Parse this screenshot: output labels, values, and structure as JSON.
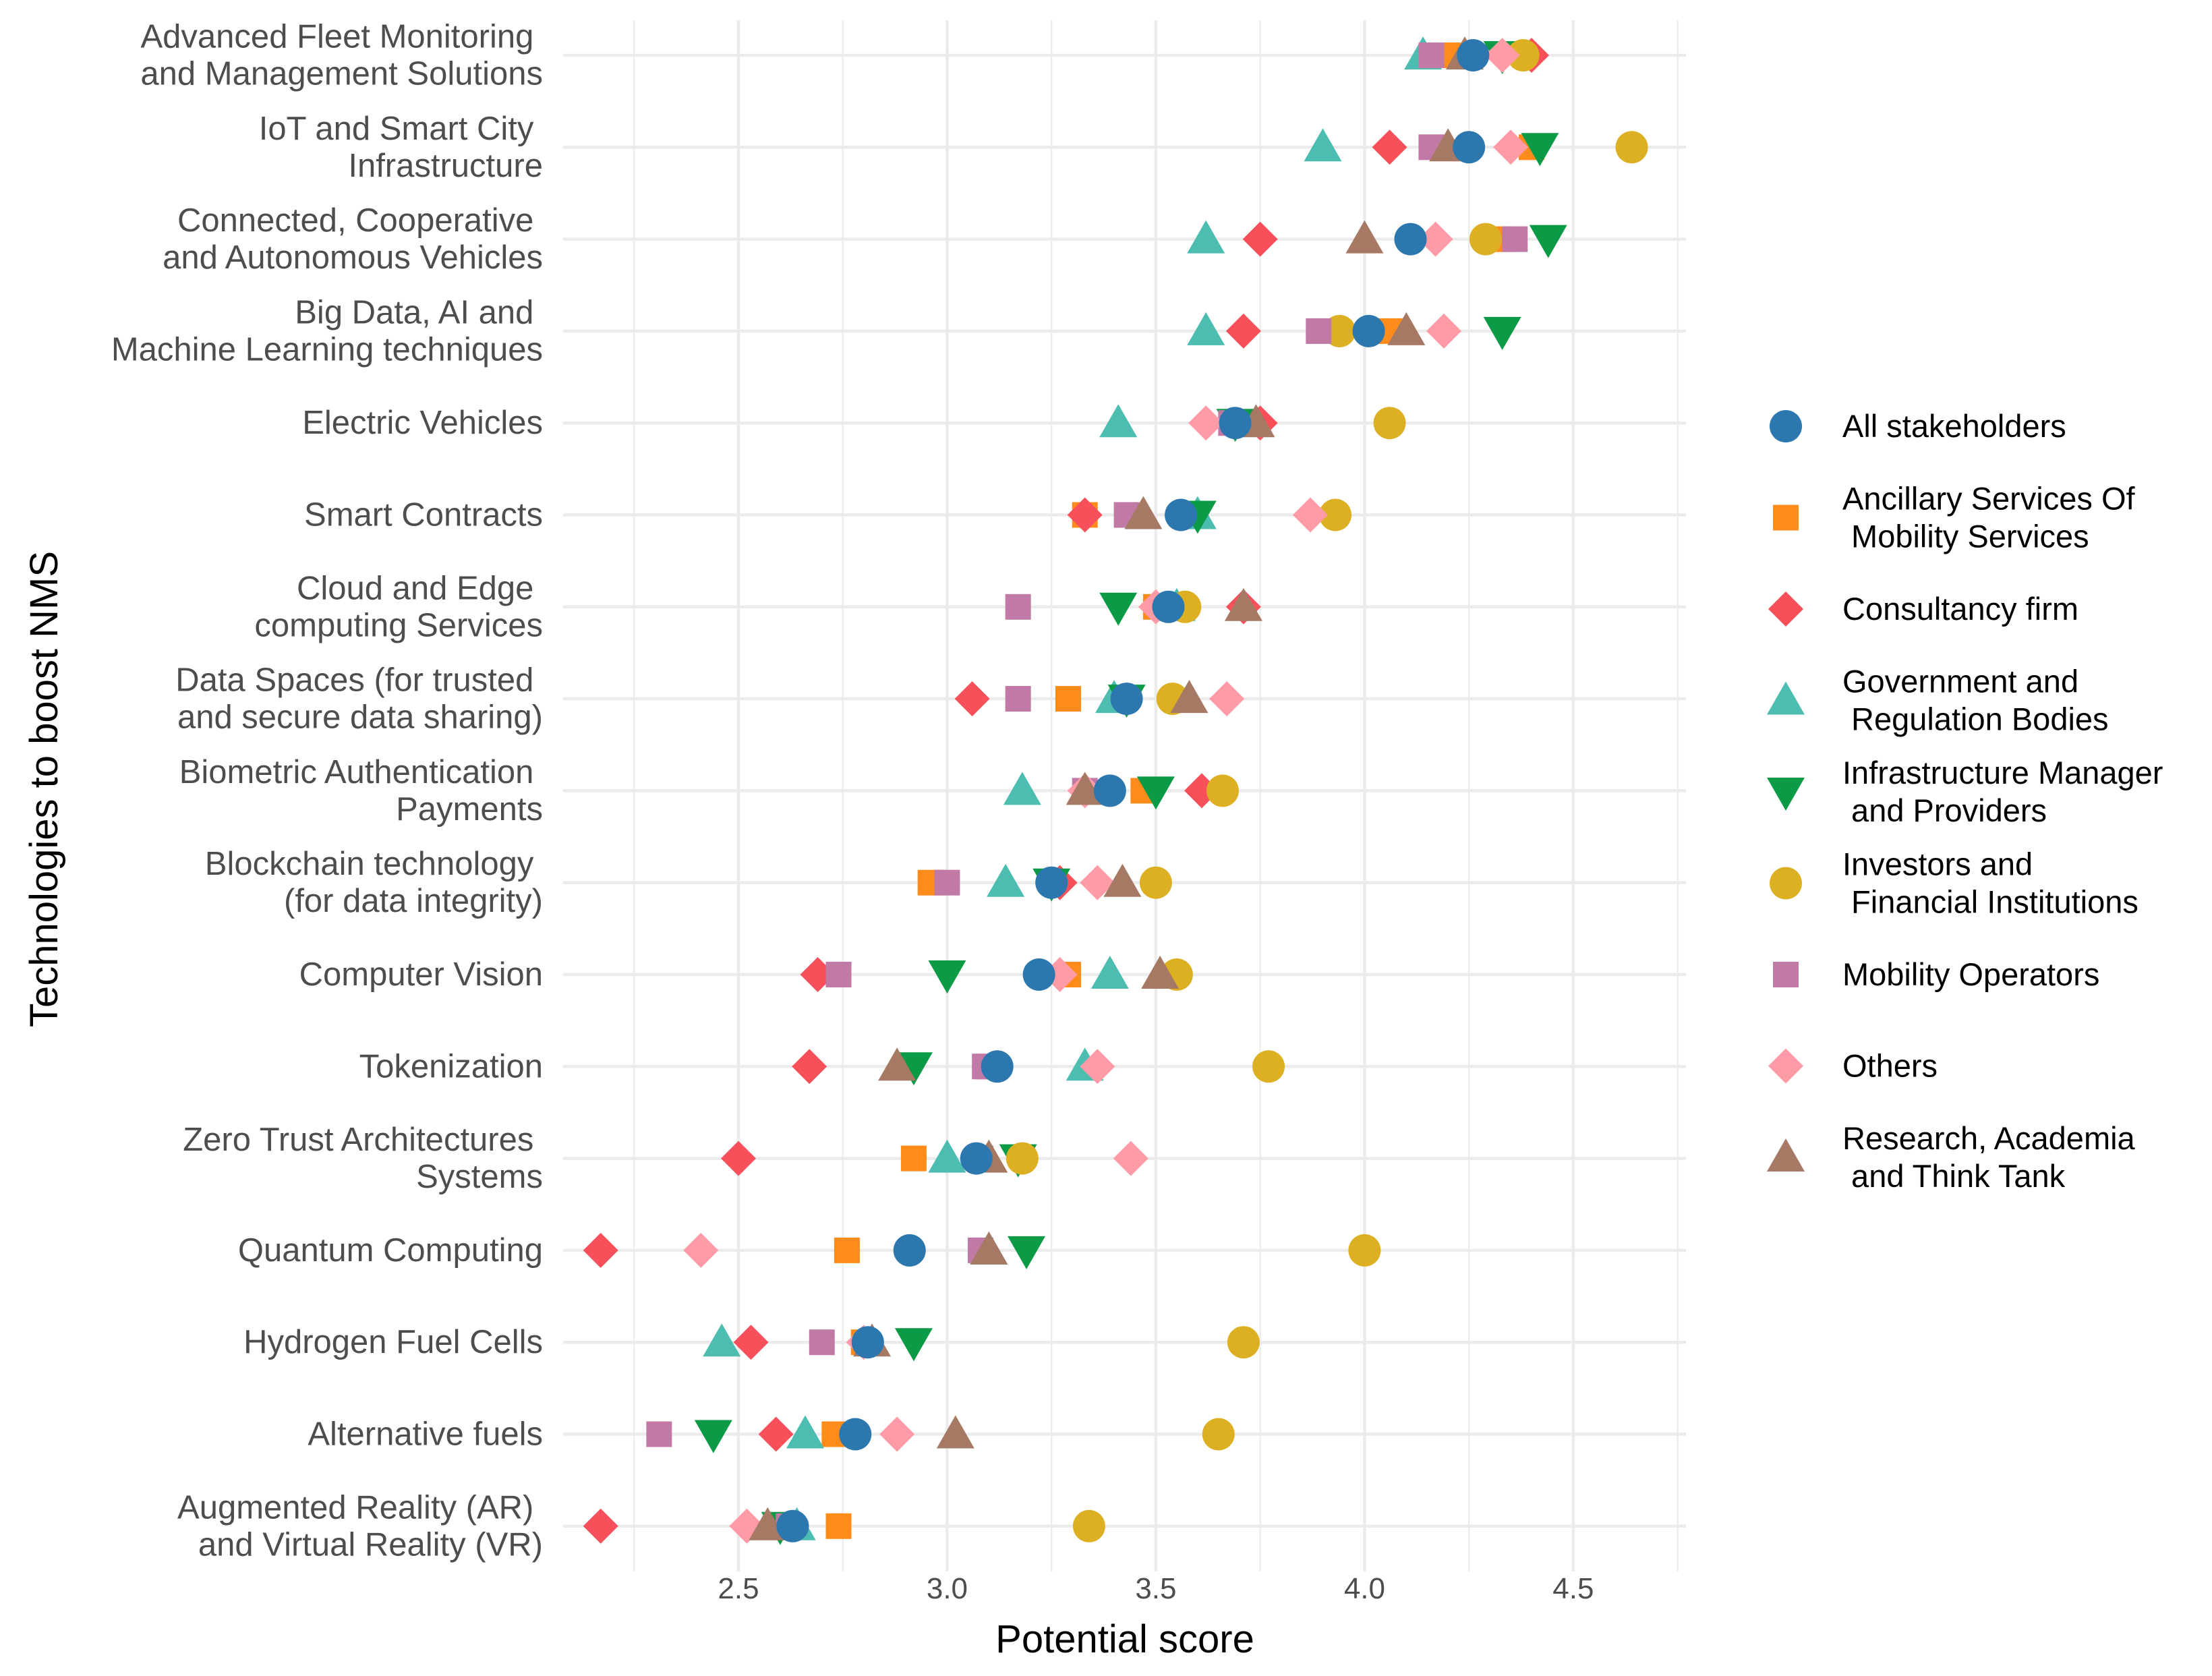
{
  "chart_data": {
    "type": "scatter",
    "title": "",
    "xlabel": "Potential score",
    "ylabel": "Technologies to boost NMS",
    "xlim": [
      2.08,
      4.77
    ],
    "xticks": [
      2.5,
      3.0,
      3.5,
      4.0,
      4.5
    ],
    "xtick_labels": [
      "2.5",
      "3.0",
      "3.5",
      "4.0",
      "4.5"
    ],
    "grid": true,
    "legend_position": "right",
    "categories": [
      [
        "Advanced Fleet Monitoring ",
        "and Management Solutions"
      ],
      [
        "IoT and Smart City ",
        "Infrastructure"
      ],
      [
        "Connected, Cooperative ",
        "and Autonomous Vehicles"
      ],
      [
        "Big Data, AI and ",
        "Machine Learning techniques"
      ],
      [
        "Electric Vehicles"
      ],
      [
        "Smart Contracts"
      ],
      [
        "Cloud and Edge ",
        "computing Services"
      ],
      [
        "Data Spaces (for trusted ",
        "and secure data sharing)"
      ],
      [
        "Biometric Authentication ",
        "Payments"
      ],
      [
        "Blockchain technology ",
        "(for data integrity)"
      ],
      [
        "Computer Vision"
      ],
      [
        "Tokenization"
      ],
      [
        "Zero Trust Architectures ",
        "Systems"
      ],
      [
        "Quantum Computing"
      ],
      [
        "Hydrogen Fuel Cells"
      ],
      [
        "Alternative fuels"
      ],
      [
        "Augmented Reality (AR) ",
        "and Virtual Reality (VR)"
      ]
    ],
    "series": [
      {
        "name": "Ancillary Services Of\n Mobility Services",
        "shape": "square",
        "color": "#FF8C1A",
        "values": [
          4.2,
          4.4,
          4.33,
          4.06,
          3.72,
          3.33,
          3.5,
          3.29,
          3.47,
          2.96,
          3.29,
          3.1,
          2.92,
          2.76,
          2.8,
          2.73,
          2.74
        ]
      },
      {
        "name": "Consultancy firm",
        "shape": "diamond",
        "color": "#F8505B",
        "values": [
          4.4,
          4.06,
          3.75,
          3.71,
          3.75,
          3.33,
          3.71,
          3.06,
          3.61,
          3.27,
          2.69,
          2.67,
          2.5,
          2.17,
          2.53,
          2.59,
          2.17
        ]
      },
      {
        "name": "Government and\n Regulation Bodies",
        "shape": "triangle-up",
        "color": "#4DBDB1",
        "values": [
          4.14,
          3.9,
          3.62,
          3.62,
          3.41,
          3.6,
          3.55,
          3.4,
          3.18,
          3.14,
          3.39,
          3.33,
          3.0,
          3.1,
          2.46,
          2.66,
          2.64
        ]
      },
      {
        "name": "Infrastructure Manager\n and Providers",
        "shape": "triangle-down",
        "color": "#0B9A45",
        "values": [
          4.33,
          4.42,
          4.44,
          4.33,
          3.69,
          3.6,
          3.41,
          3.43,
          3.5,
          3.25,
          3.0,
          2.92,
          3.17,
          3.19,
          2.92,
          2.44,
          2.6
        ]
      },
      {
        "name": "Investors and\n Financial Institutions",
        "shape": "circle",
        "color": "#DDAF23",
        "values": [
          4.38,
          4.64,
          4.29,
          3.94,
          4.06,
          3.93,
          3.57,
          3.54,
          3.66,
          3.5,
          3.55,
          3.77,
          3.18,
          4.0,
          3.71,
          3.65,
          3.34
        ]
      },
      {
        "name": "Mobility Operators",
        "shape": "square",
        "color": "#C179A5",
        "values": [
          4.16,
          4.16,
          4.36,
          3.89,
          3.68,
          3.43,
          3.17,
          3.17,
          3.33,
          3.0,
          2.74,
          3.09,
          3.08,
          3.08,
          2.7,
          2.31,
          2.62
        ]
      },
      {
        "name": "Others",
        "shape": "diamond",
        "color": "#FF9BA6",
        "values": [
          4.33,
          4.35,
          4.17,
          4.19,
          3.62,
          3.87,
          3.5,
          3.67,
          3.33,
          3.36,
          3.27,
          3.36,
          3.44,
          2.41,
          2.8,
          2.88,
          2.52
        ]
      },
      {
        "name": "Research, Academia\n and Think Tank",
        "shape": "triangle-up",
        "color": "#A67964",
        "values": [
          4.24,
          4.2,
          4.0,
          4.1,
          3.74,
          3.47,
          3.71,
          3.58,
          3.33,
          3.42,
          3.51,
          2.88,
          3.1,
          3.1,
          2.82,
          3.02,
          2.57
        ]
      },
      {
        "name": "All stakeholders",
        "shape": "circle",
        "color": "#2C77AE",
        "values": [
          4.26,
          4.25,
          4.11,
          4.01,
          3.69,
          3.56,
          3.53,
          3.43,
          3.39,
          3.25,
          3.22,
          3.12,
          3.07,
          2.91,
          2.81,
          2.78,
          2.63
        ]
      }
    ],
    "legend_order": [
      8,
      0,
      1,
      2,
      3,
      4,
      5,
      6,
      7
    ]
  }
}
